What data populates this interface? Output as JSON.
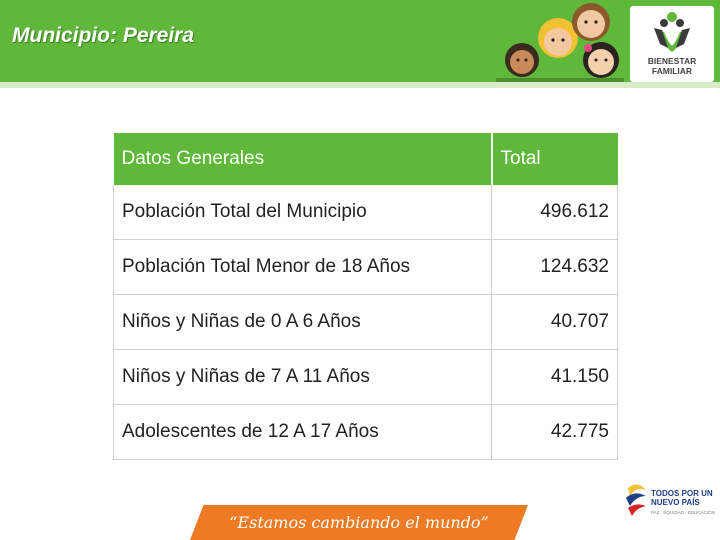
{
  "header": {
    "title": "Municipio: Pereira",
    "logo_line1": "BIENESTAR",
    "logo_line2": "FAMILIAR"
  },
  "table": {
    "headers": [
      "Datos Generales",
      "Total"
    ],
    "rows": [
      {
        "label": "Población Total del Municipio",
        "value": "496.612"
      },
      {
        "label": "Población Total Menor de 18 Años",
        "value": "124.632"
      },
      {
        "label": "Niños y Niñas de 0 A 6 Años",
        "value": "40.707"
      },
      {
        "label": "Niños y Niñas de 7 A 11 Años",
        "value": "41.150"
      },
      {
        "label": "Adolescentes de 12 A 17 Años",
        "value": "42.775"
      }
    ]
  },
  "footer": {
    "slogan": "“Estamos cambiando el mundo”",
    "gov_line1": "TODOS POR UN",
    "gov_line2": "NUEVO PAÍS",
    "gov_line3": "PAZ · EQUIDAD · EDUCACIÓN"
  },
  "colors": {
    "primary_green": "#5fb83a",
    "slogan_orange": "#ee7b24",
    "gov_blue": "#1f3f87"
  },
  "icons": [
    "children-illustration",
    "bienestar-familiar-logo",
    "todos-por-un-nuevo-pais-logo"
  ]
}
